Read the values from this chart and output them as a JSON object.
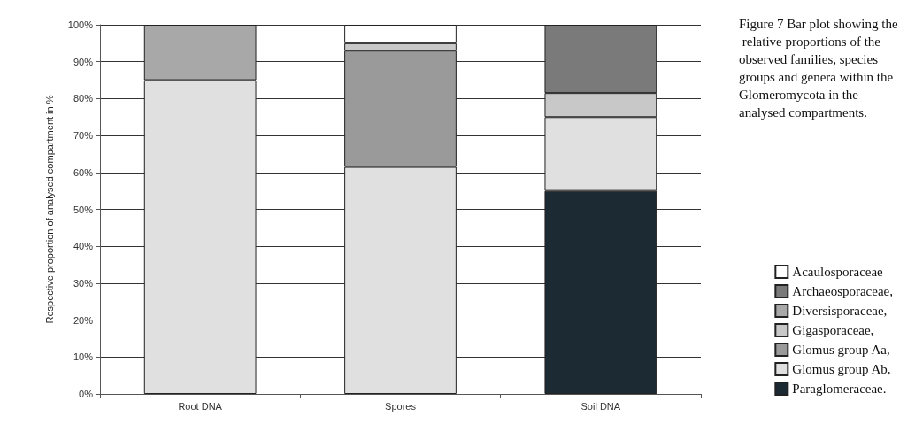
{
  "chart_data": {
    "type": "bar",
    "title": "Figure 7 Bar plot showing the relative proportions of the observed families, species groups and genera within the Glomeromycota in the analysed compartments.",
    "ylabel": "Respective proportion of analysed compartment in %",
    "categories": [
      "Root DNA",
      "Spores",
      "Soil DNA"
    ],
    "stacked": true,
    "series": [
      {
        "name": "Paraglomeraceae.",
        "color": "#1c2a33",
        "values": [
          null,
          null,
          55
        ]
      },
      {
        "name": "Glomus group Ab,",
        "color": "#e0e0e0",
        "values": [
          85,
          61.5,
          20
        ]
      },
      {
        "name": "Glomus group Aa,",
        "color": "#9a9a9a",
        "values": [
          null,
          31.5,
          null
        ]
      },
      {
        "name": "Gigasporaceae,",
        "color": "#c8c8c8",
        "values": [
          null,
          2,
          6.5
        ]
      },
      {
        "name": "Diversisporaceae,",
        "color": "#a8a8a8",
        "values": [
          15,
          null,
          null
        ]
      },
      {
        "name": "Archaeosporaceae,",
        "color": "#7a7a7a",
        "values": [
          null,
          null,
          18.5
        ]
      },
      {
        "name": "Acaulosporaceae",
        "color": "#ffffff",
        "values": [
          null,
          5,
          null
        ]
      }
    ],
    "ylim": [
      0,
      100
    ],
    "yticks": [
      {
        "value": 0,
        "label": "0%"
      },
      {
        "value": 10,
        "label": "10%"
      },
      {
        "value": 20,
        "label": "20%"
      },
      {
        "value": 30,
        "label": "30%"
      },
      {
        "value": 40,
        "label": "40%"
      },
      {
        "value": 50,
        "label": "50%"
      },
      {
        "value": 60,
        "label": "60%"
      },
      {
        "value": 70,
        "label": "70%"
      },
      {
        "value": 80,
        "label": "80%"
      },
      {
        "value": 90,
        "label": "90%"
      },
      {
        "value": 100,
        "label": "100%"
      }
    ],
    "grid": "y",
    "legend": "right"
  }
}
